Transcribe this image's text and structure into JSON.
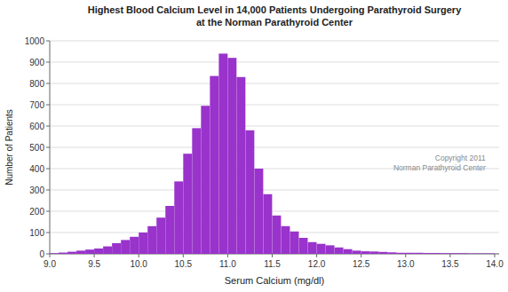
{
  "chart_data": {
    "type": "bar",
    "title": "Highest Blood Calcium Level in 14,000 Patients Undergoing Parathyroid Surgery\nat the Norman Parathyroid Center",
    "xlabel": "Serum Calcium (mg/dl)",
    "ylabel": "Number of Patients",
    "annotation": "Copyright 2011\nNorman Parathyroid Center",
    "color": "#9933cc",
    "grid": true,
    "x": [
      9.0,
      9.1,
      9.2,
      9.3,
      9.4,
      9.5,
      9.6,
      9.7,
      9.8,
      9.9,
      10.0,
      10.1,
      10.2,
      10.3,
      10.4,
      10.5,
      10.6,
      10.7,
      10.8,
      10.9,
      11.0,
      11.1,
      11.2,
      11.3,
      11.4,
      11.5,
      11.6,
      11.7,
      11.8,
      11.9,
      12.0,
      12.1,
      12.2,
      12.3,
      12.4,
      12.5,
      12.6,
      12.7,
      12.8,
      12.9,
      13.0,
      13.1,
      13.2,
      13.3,
      13.4,
      13.5,
      13.6,
      13.7,
      13.8,
      13.9
    ],
    "values": [
      3,
      6,
      10,
      15,
      20,
      25,
      35,
      50,
      65,
      80,
      100,
      130,
      170,
      225,
      340,
      470,
      590,
      695,
      835,
      940,
      920,
      830,
      580,
      400,
      280,
      180,
      130,
      105,
      75,
      55,
      47,
      40,
      30,
      22,
      15,
      12,
      11,
      9,
      7,
      5,
      5,
      5,
      4,
      4,
      3,
      3,
      3,
      2,
      2,
      2
    ],
    "xlim": [
      9.0,
      14.05
    ],
    "ylim": [
      0,
      1000
    ],
    "xticks": [
      {
        "value": 9.0,
        "label": "9.0"
      },
      9.5,
      {
        "value": 10.0,
        "label": "10.0"
      },
      10.5,
      {
        "value": 11.0,
        "label": "11.0"
      },
      11.5,
      {
        "value": 12.0,
        "label": "12.0"
      },
      12.5,
      {
        "value": 13.0,
        "label": "13.0"
      },
      13.5,
      {
        "value": 14.0,
        "label": "14.0"
      }
    ],
    "yticks": [
      0,
      100,
      200,
      300,
      400,
      500,
      600,
      700,
      800,
      900,
      1000
    ]
  }
}
